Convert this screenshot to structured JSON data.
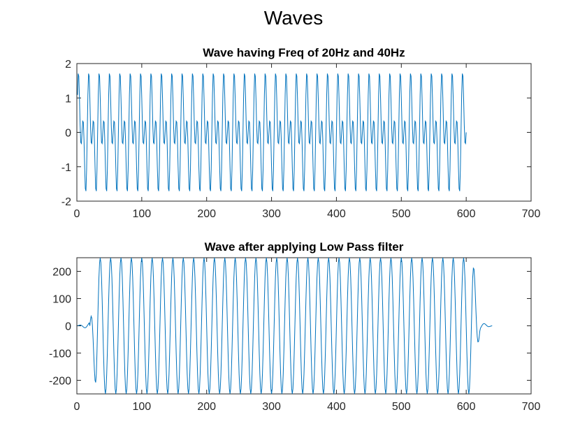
{
  "figure": {
    "title": "Waves"
  },
  "chart_data": [
    {
      "type": "line",
      "title": "Wave having Freq of 20Hz and 40Hz",
      "xlabel": "",
      "ylabel": "",
      "xlim": [
        0,
        700
      ],
      "ylim": [
        -2,
        2
      ],
      "xticks": [
        0,
        100,
        200,
        300,
        400,
        500,
        600,
        700
      ],
      "xtick_labels": [
        "0",
        "100",
        "200",
        "300",
        "400",
        "500",
        "600",
        "700"
      ],
      "yticks": [
        -2,
        -1,
        0,
        1,
        2
      ],
      "ytick_labels": [
        "-2",
        "-1",
        "0",
        "1",
        "2"
      ],
      "grid": false,
      "line_color": "#0072BD",
      "series": [
        {
          "sample_count": 600,
          "x_range": [
            1,
            600
          ],
          "components": [
            {
              "cycles_per_sample": 0.0625,
              "amplitude": 1
            },
            {
              "cycles_per_sample": 0.125,
              "amplitude": 1
            }
          ],
          "y_peak": 1.92,
          "y_trough": -1.92
        }
      ]
    },
    {
      "type": "line",
      "title": "Wave after applying Low Pass filter",
      "xlabel": "",
      "ylabel": "",
      "xlim": [
        0,
        700
      ],
      "ylim": [
        -250,
        250
      ],
      "xticks": [
        0,
        100,
        200,
        300,
        400,
        500,
        600,
        700
      ],
      "xtick_labels": [
        "0",
        "100",
        "200",
        "300",
        "400",
        "500",
        "600",
        "700"
      ],
      "yticks": [
        -200,
        -100,
        0,
        100,
        200
      ],
      "ytick_labels": [
        "-200",
        "-100",
        "0",
        "100",
        "200"
      ],
      "grid": false,
      "line_color": "#0072BD",
      "series": [
        {
          "x_range": [
            1,
            640
          ],
          "cycles_per_sample": 0.0625,
          "amplitude": 250,
          "steady_segment": [
            30,
            610
          ],
          "ramp_segments": [
            [
              1,
              30
            ],
            [
              610,
              640
            ]
          ],
          "edge_ripple_amplitude": 12
        }
      ]
    }
  ]
}
